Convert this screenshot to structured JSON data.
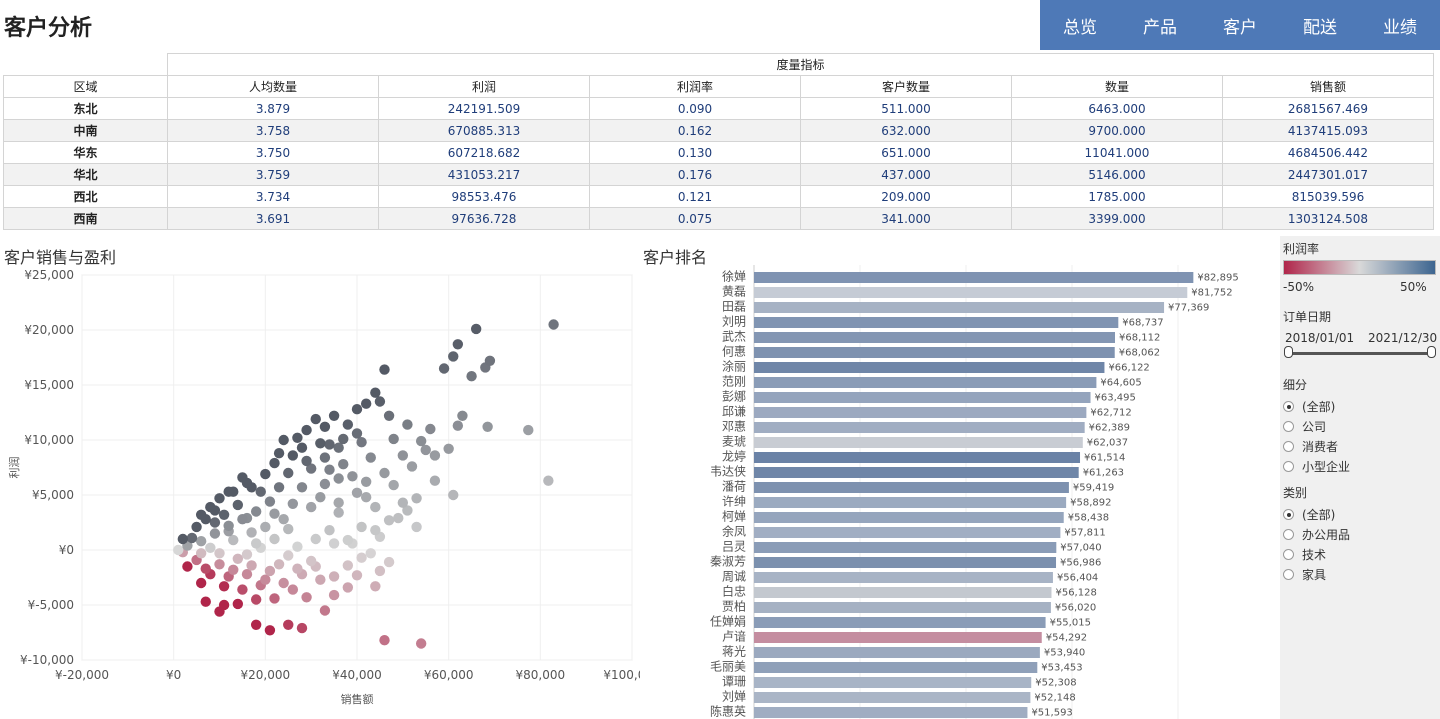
{
  "title": "客户分析",
  "nav": [
    "总览",
    "产品",
    "客户",
    "配送",
    "业绩"
  ],
  "table": {
    "group_header": "度量指标",
    "columns": [
      "区域",
      "人均数量",
      "利润",
      "利润率",
      "客户数量",
      "数量",
      "销售额"
    ],
    "rows": [
      [
        "东北",
        "3.879",
        "242191.509",
        "0.090",
        "511.000",
        "6463.000",
        "2681567.469"
      ],
      [
        "中南",
        "3.758",
        "670885.313",
        "0.162",
        "632.000",
        "9700.000",
        "4137415.093"
      ],
      [
        "华东",
        "3.750",
        "607218.682",
        "0.130",
        "651.000",
        "11041.000",
        "4684506.442"
      ],
      [
        "华北",
        "3.759",
        "431053.217",
        "0.176",
        "437.000",
        "5146.000",
        "2447301.017"
      ],
      [
        "西北",
        "3.734",
        "98553.476",
        "0.121",
        "209.000",
        "1785.000",
        "815039.596"
      ],
      [
        "西南",
        "3.691",
        "97636.728",
        "0.075",
        "341.000",
        "3399.000",
        "1303124.508"
      ]
    ]
  },
  "scatter_title": "客户销售与盈利",
  "ranking_title": "客户排名",
  "colors": {
    "nav_bg": "#4e79b7",
    "neg": "#b0254a",
    "mid": "#d9d9d9",
    "pos": "#3d6590"
  },
  "chart_data": [
    {
      "type": "scatter",
      "title": "客户销售与盈利",
      "xlabel": "销售额",
      "ylabel": "利润",
      "xlim": [
        -20000,
        100000
      ],
      "ylim": [
        -10000,
        25000
      ],
      "xticks": [
        -20000,
        0,
        20000,
        40000,
        60000,
        80000,
        100000
      ],
      "xtick_labels": [
        "¥-20,000",
        "¥0",
        "¥20,000",
        "¥40,000",
        "¥60,000",
        "¥80,000",
        "¥100,000"
      ],
      "yticks": [
        -10000,
        -5000,
        0,
        5000,
        10000,
        15000,
        20000,
        25000
      ],
      "ytick_labels": [
        "¥-10,000",
        "¥-5,000",
        "¥0",
        "¥5,000",
        "¥10,000",
        "¥15,000",
        "¥20,000",
        "¥25,000"
      ],
      "color_by": "利润率",
      "points": [
        [
          82895,
          20500
        ],
        [
          81752,
          6300
        ],
        [
          77369,
          10900
        ],
        [
          66000,
          20100
        ],
        [
          69000,
          17200
        ],
        [
          68500,
          11200
        ],
        [
          68000,
          16600
        ],
        [
          62000,
          18700
        ],
        [
          65000,
          15800
        ],
        [
          61000,
          17600
        ],
        [
          59000,
          16500
        ],
        [
          63000,
          12200
        ],
        [
          60000,
          9200
        ],
        [
          62000,
          11300
        ],
        [
          61000,
          5000
        ],
        [
          56000,
          11000
        ],
        [
          55000,
          9100
        ],
        [
          46000,
          16400
        ],
        [
          45000,
          13500
        ],
        [
          42000,
          13300
        ],
        [
          44000,
          14300
        ],
        [
          40000,
          10600
        ],
        [
          41000,
          9800
        ],
        [
          38000,
          11400
        ],
        [
          37000,
          10100
        ],
        [
          35000,
          12200
        ],
        [
          33000,
          11200
        ],
        [
          36000,
          9300
        ],
        [
          31000,
          11900
        ],
        [
          27000,
          10200
        ],
        [
          26000,
          8600
        ],
        [
          24000,
          10000
        ],
        [
          22000,
          7900
        ],
        [
          20000,
          6900
        ],
        [
          16000,
          6100
        ],
        [
          15000,
          6600
        ],
        [
          12000,
          5300
        ],
        [
          10000,
          4700
        ],
        [
          8000,
          3900
        ],
        [
          6000,
          3200
        ],
        [
          50000,
          8600
        ],
        [
          48000,
          10100
        ],
        [
          52000,
          7600
        ],
        [
          46000,
          7000
        ],
        [
          48000,
          5900
        ],
        [
          53000,
          4700
        ],
        [
          51000,
          3600
        ],
        [
          47000,
          2700
        ],
        [
          44000,
          3900
        ],
        [
          41000,
          2100
        ],
        [
          38000,
          900
        ],
        [
          40000,
          5200
        ],
        [
          36000,
          6500
        ],
        [
          32000,
          4800
        ],
        [
          30000,
          3900
        ],
        [
          28000,
          5700
        ],
        [
          34000,
          7300
        ],
        [
          29000,
          8100
        ],
        [
          23000,
          5700
        ],
        [
          21000,
          4400
        ],
        [
          18000,
          3500
        ],
        [
          15000,
          2800
        ],
        [
          12000,
          2200
        ],
        [
          9000,
          1500
        ],
        [
          6000,
          800
        ],
        [
          3000,
          400
        ],
        [
          1000,
          0
        ],
        [
          25000,
          1900
        ],
        [
          27000,
          300
        ],
        [
          22000,
          1000
        ],
        [
          19000,
          200
        ],
        [
          16000,
          -400
        ],
        [
          14000,
          -800
        ],
        [
          10000,
          -1300
        ],
        [
          7000,
          -1700
        ],
        [
          5000,
          -900
        ],
        [
          3000,
          -1500
        ],
        [
          12000,
          -2400
        ],
        [
          16000,
          -2200
        ],
        [
          20000,
          -2700
        ],
        [
          24000,
          -3000
        ],
        [
          28000,
          -2200
        ],
        [
          32000,
          -2700
        ],
        [
          35000,
          -2400
        ],
        [
          40000,
          -2300
        ],
        [
          44000,
          -3300
        ],
        [
          47000,
          -1100
        ],
        [
          45000,
          -1900
        ],
        [
          43000,
          -300
        ],
        [
          39000,
          600
        ],
        [
          31000,
          -1500
        ],
        [
          26000,
          -3600
        ],
        [
          22000,
          -4400
        ],
        [
          18000,
          -4500
        ],
        [
          14000,
          -4900
        ],
        [
          11000,
          -5000
        ],
        [
          10000,
          -5600
        ],
        [
          7000,
          -4700
        ],
        [
          29000,
          -4300
        ],
        [
          33000,
          -5500
        ],
        [
          25000,
          -6800
        ],
        [
          21000,
          -7300
        ],
        [
          28000,
          -7100
        ],
        [
          18000,
          -6800
        ],
        [
          54000,
          -8500
        ],
        [
          46000,
          -8200
        ],
        [
          35000,
          -4100
        ],
        [
          38000,
          -3400
        ],
        [
          30000,
          -1000
        ],
        [
          24000,
          2800
        ],
        [
          20000,
          2100
        ],
        [
          17000,
          1600
        ],
        [
          13000,
          900
        ],
        [
          34000,
          1800
        ],
        [
          36000,
          3400
        ],
        [
          42000,
          4800
        ],
        [
          39000,
          6700
        ],
        [
          30000,
          7400
        ],
        [
          25000,
          7000
        ],
        [
          32000,
          9700
        ],
        [
          28000,
          9300
        ],
        [
          43000,
          8400
        ],
        [
          37000,
          7800
        ],
        [
          33000,
          6000
        ],
        [
          26000,
          4200
        ],
        [
          19000,
          5300
        ],
        [
          14000,
          4100
        ],
        [
          11000,
          3200
        ],
        [
          9000,
          2500
        ],
        [
          8000,
          200
        ],
        [
          6000,
          -300
        ],
        [
          4000,
          1100
        ],
        [
          2000,
          -200
        ],
        [
          13000,
          -1800
        ],
        [
          17000,
          -1400
        ],
        [
          21000,
          -1900
        ],
        [
          23000,
          -1300
        ],
        [
          27000,
          -1700
        ],
        [
          31000,
          1000
        ],
        [
          35000,
          600
        ],
        [
          41000,
          -700
        ],
        [
          45000,
          1200
        ],
        [
          49000,
          2900
        ],
        [
          50000,
          4300
        ],
        [
          53000,
          2100
        ],
        [
          57000,
          6300
        ],
        [
          57000,
          8600
        ],
        [
          54000,
          9900
        ],
        [
          51000,
          11400
        ],
        [
          47000,
          12200
        ],
        [
          40000,
          12800
        ],
        [
          34000,
          9600
        ],
        [
          22000,
          3300
        ],
        [
          16000,
          2900
        ],
        [
          12000,
          1700
        ],
        [
          5000,
          2100
        ],
        [
          2000,
          1000
        ],
        [
          7000,
          2800
        ],
        [
          9000,
          3600
        ],
        [
          13000,
          5300
        ],
        [
          17000,
          5700
        ],
        [
          23000,
          8800
        ],
        [
          29000,
          10900
        ],
        [
          33000,
          8400
        ],
        [
          36000,
          4300
        ],
        [
          42000,
          6200
        ],
        [
          44000,
          1800
        ],
        [
          38000,
          -1400
        ],
        [
          25000,
          -500
        ],
        [
          18000,
          600
        ],
        [
          10000,
          -300
        ],
        [
          8000,
          -2200
        ],
        [
          6000,
          -3000
        ],
        [
          11000,
          -3300
        ],
        [
          15000,
          -3600
        ],
        [
          19000,
          -3200
        ]
      ]
    },
    {
      "type": "bar",
      "title": "客户排名",
      "orientation": "horizontal",
      "xlim": [
        0,
        100000
      ],
      "categories": [
        "徐婵",
        "黄磊",
        "田磊",
        "刘明",
        "武杰",
        "何惠",
        "涂丽",
        "范刚",
        "彭娜",
        "邱谦",
        "邓惠",
        "麦琥",
        "龙婷",
        "韦达侠",
        "潘荷",
        "许绅",
        "柯婵",
        "余凤",
        "吕灵",
        "秦淑芳",
        "周诚",
        "白忠",
        "贾柏",
        "任婵娟",
        "卢谙",
        "蒋光",
        "毛丽美",
        "谭珊",
        "刘婵",
        "陈惠英"
      ],
      "values": [
        82895,
        81752,
        77369,
        68737,
        68112,
        68062,
        66122,
        64605,
        63495,
        62712,
        62389,
        62037,
        61514,
        61263,
        59419,
        58892,
        58438,
        57811,
        57040,
        56986,
        56404,
        56128,
        56020,
        55015,
        54292,
        53940,
        53453,
        52308,
        52148,
        51593
      ],
      "value_labels": [
        "¥82,895",
        "¥81,752",
        "¥77,369",
        "¥68,737",
        "¥68,112",
        "¥68,062",
        "¥66,122",
        "¥64,605",
        "¥63,495",
        "¥62,712",
        "¥62,389",
        "¥62,037",
        "¥61,514",
        "¥61,263",
        "¥59,419",
        "¥58,892",
        "¥58,438",
        "¥57,811",
        "¥57,040",
        "¥56,986",
        "¥56,404",
        "¥56,128",
        "¥56,020",
        "¥55,015",
        "¥54,292",
        "¥53,940",
        "¥53,453",
        "¥52,308",
        "¥52,148",
        "¥51,593"
      ],
      "colors": [
        "#7f93b2",
        "#c5cbd5",
        "#a6b2c4",
        "#8094b2",
        "#8396b3",
        "#7e92b0",
        "#6f86a8",
        "#8a9cb7",
        "#94a4bd",
        "#9ca9c0",
        "#a0adc2",
        "#c8ccd3",
        "#6a82a6",
        "#6f86a8",
        "#7d91af",
        "#9baac0",
        "#95a5bd",
        "#a1aec3",
        "#8a9cb7",
        "#7b90ae",
        "#a7b3c5",
        "#c3c8cf",
        "#a5b1c3",
        "#8a9cb7",
        "#c48da0",
        "#9ba9bf",
        "#8fa0b9",
        "#a8b4c6",
        "#aab5c6",
        "#a0adc2"
      ]
    }
  ],
  "side": {
    "legend_title": "利润率",
    "legend_min": "-50%",
    "legend_max": "50%",
    "date_title": "订单日期",
    "date_start": "2018/01/01",
    "date_end": "2021/12/30",
    "segment_title": "细分",
    "segment_options": [
      "(全部)",
      "公司",
      "消费者",
      "小型企业"
    ],
    "category_title": "类别",
    "category_options": [
      "(全部)",
      "办公用品",
      "技术",
      "家具"
    ]
  }
}
